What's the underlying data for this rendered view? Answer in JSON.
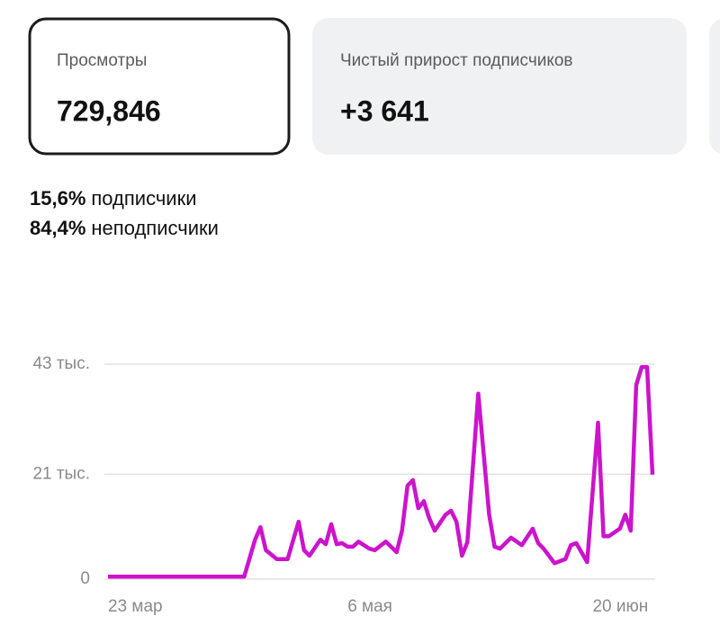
{
  "cards": [
    {
      "title": "Просмотры",
      "value": "729,846",
      "selected": true
    },
    {
      "title": "Чистый прирост подписчиков",
      "value": "+3 641",
      "selected": false
    }
  ],
  "audience": [
    {
      "percent": "15,6%",
      "label": "подписчики"
    },
    {
      "percent": "84,4%",
      "label": "неподписчики"
    }
  ],
  "chart_data": {
    "type": "line",
    "x": [
      0,
      25,
      27,
      28,
      29,
      31,
      33,
      35,
      36,
      37,
      39,
      40,
      41,
      42,
      43,
      44,
      45,
      46,
      48,
      49,
      51,
      53,
      54,
      55,
      56,
      57,
      58,
      59,
      60,
      62,
      63,
      64,
      65,
      66,
      68,
      70,
      71,
      72,
      74,
      76,
      78,
      79,
      80,
      82,
      84,
      85,
      86,
      88,
      90,
      91,
      92,
      94,
      95,
      96,
      97,
      98,
      99,
      100
    ],
    "series": [
      {
        "color": "#cc14cc",
        "values": [
          0.5,
          0.5,
          7.9,
          10.4,
          5.8,
          4,
          4,
          11.5,
          5.8,
          4.7,
          7.9,
          7,
          11,
          7,
          7.2,
          6.5,
          6.5,
          7.5,
          6.1,
          5.8,
          7.5,
          5.4,
          9.7,
          18.7,
          19.8,
          14.2,
          15.6,
          12.2,
          9.7,
          12.9,
          13.7,
          11.5,
          4.7,
          7.4,
          37.1,
          12.9,
          6.5,
          6.1,
          8.3,
          6.8,
          10.1,
          7.2,
          6.1,
          3.2,
          4,
          6.8,
          7.2,
          3.4,
          31.3,
          8.6,
          8.6,
          10.1,
          12.9,
          9.7,
          38.8,
          42.4,
          42.4,
          20.9
        ]
      }
    ],
    "xlim": [
      0,
      100
    ],
    "xticks": [
      {
        "value": 0,
        "label": "23 мар"
      },
      {
        "value": 44,
        "label": "6 мая"
      },
      {
        "value": 89,
        "label": "20 июн"
      }
    ],
    "ylim": [
      0,
      43
    ],
    "yticks": [
      0,
      {
        "value": 21,
        "label": "21 тыс."
      },
      {
        "value": 43,
        "label": "43 тыс."
      }
    ],
    "grid": true
  }
}
